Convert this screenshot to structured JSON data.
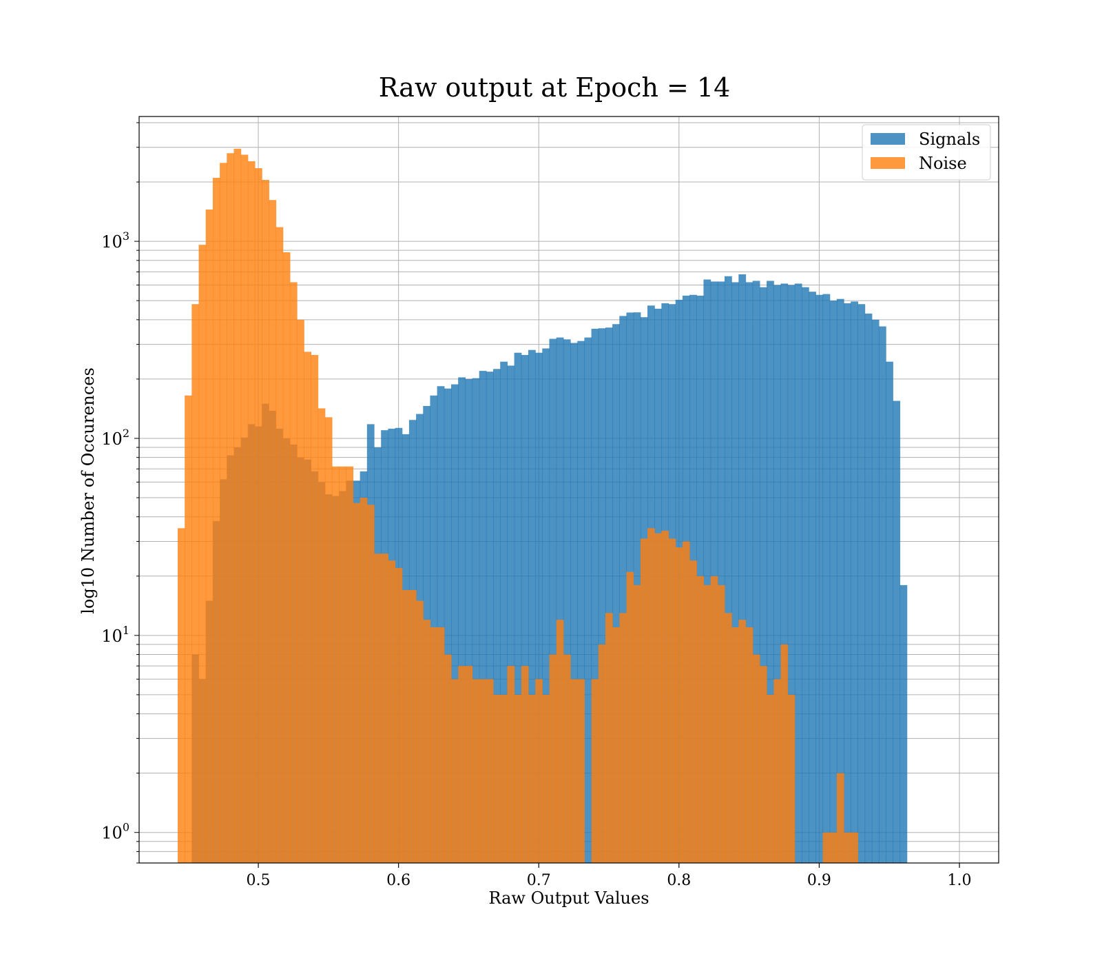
{
  "chart_data": {
    "type": "bar",
    "title": "Raw output at Epoch = 14",
    "xlabel": "Raw Output Values",
    "ylabel": "log10 Number of Occurences",
    "yscale": "log",
    "grid": true,
    "legend_position": "top-right",
    "xlim": [
      0.415,
      1.028
    ],
    "ylim": [
      0.7,
      4300
    ],
    "xticks": [
      {
        "value": 0.5,
        "label": "0.5"
      },
      {
        "value": 0.6,
        "label": "0.6"
      },
      {
        "value": 0.7,
        "label": "0.7"
      },
      {
        "value": 0.8,
        "label": "0.8"
      },
      {
        "value": 0.9,
        "label": "0.9"
      },
      {
        "value": 1.0,
        "label": "1.0"
      }
    ],
    "yticks": [
      {
        "value": 1,
        "base": "10",
        "exp": "0"
      },
      {
        "value": 10,
        "base": "10",
        "exp": "1"
      },
      {
        "value": 100,
        "base": "10",
        "exp": "2"
      },
      {
        "value": 1000,
        "base": "10",
        "exp": "3"
      }
    ],
    "bin_start": 0.4425,
    "bin_width": 0.005,
    "series": [
      {
        "name": "Signals",
        "color": "#1f77b4",
        "values": [
          0,
          0,
          8,
          6,
          15,
          38,
          62,
          82,
          90,
          101,
          118,
          115,
          150,
          138,
          112,
          100,
          93,
          80,
          78,
          68,
          60,
          52,
          51,
          54,
          61,
          61,
          68,
          118,
          90,
          110,
          112,
          113,
          105,
          124,
          133,
          146,
          165,
          184,
          179,
          188,
          204,
          200,
          202,
          220,
          218,
          225,
          245,
          234,
          272,
          265,
          281,
          272,
          286,
          320,
          325,
          318,
          305,
          312,
          325,
          360,
          362,
          365,
          380,
          418,
          435,
          436,
          412,
          472,
          455,
          485,
          480,
          505,
          530,
          535,
          530,
          640,
          625,
          625,
          665,
          620,
          680,
          620,
          630,
          585,
          630,
          600,
          610,
          600,
          610,
          585,
          555,
          535,
          540,
          500,
          510,
          485,
          495,
          480,
          430,
          400,
          370,
          245,
          155,
          18
        ]
      },
      {
        "name": "Noise",
        "color": "#ff7f0e",
        "values": [
          35,
          165,
          480,
          960,
          1450,
          2100,
          2500,
          2800,
          2950,
          2750,
          2550,
          2350,
          2050,
          1620,
          1180,
          880,
          620,
          400,
          275,
          265,
          142,
          128,
          72,
          72,
          72,
          47,
          50,
          46,
          26,
          26,
          24,
          22,
          17,
          17,
          15,
          12,
          11,
          11,
          8,
          6,
          7,
          7,
          6,
          6,
          6,
          5,
          5,
          7,
          5,
          7,
          5,
          6,
          5,
          8,
          12,
          8,
          6,
          6,
          0,
          6,
          9,
          13,
          11,
          13,
          21,
          18,
          31,
          35,
          33,
          34,
          31,
          28,
          30,
          24,
          20,
          18,
          20,
          18,
          13,
          11,
          12,
          11,
          8,
          7,
          5,
          6,
          9,
          5,
          0,
          0,
          0,
          0,
          1,
          1,
          2,
          1,
          1,
          0,
          0,
          0,
          0,
          0,
          0,
          0
        ]
      }
    ]
  }
}
